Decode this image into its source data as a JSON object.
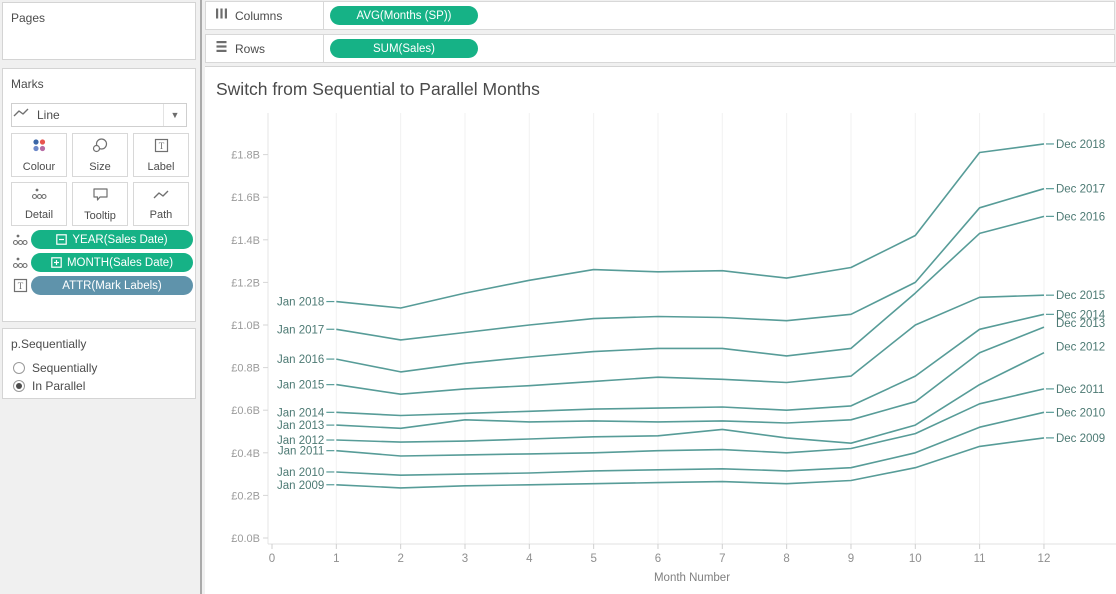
{
  "left_panel": {
    "pages": {
      "title": "Pages"
    },
    "marks": {
      "title": "Marks",
      "mark_type": "Line",
      "mark_type_icon": "line-mark-icon",
      "buttons": [
        {
          "label": "Colour",
          "icon": "colour-dots-icon"
        },
        {
          "label": "Size",
          "icon": "size-circles-icon"
        },
        {
          "label": "Label",
          "icon": "label-t-icon"
        },
        {
          "label": "Detail",
          "icon": "detail-dots-icon"
        },
        {
          "label": "Tooltip",
          "icon": "tooltip-bubble-icon"
        },
        {
          "label": "Path",
          "icon": "path-zigzag-icon"
        }
      ],
      "pills": [
        {
          "label": "YEAR(Sales Date)",
          "color": "green",
          "prefix_icon": "minus-box-icon",
          "row_icon": "detail-dots-icon"
        },
        {
          "label": "MONTH(Sales Date)",
          "color": "green",
          "prefix_icon": "plus-box-icon",
          "row_icon": "detail-dots-icon"
        },
        {
          "label": "ATTR(Mark Labels)",
          "color": "blue",
          "prefix_icon": null,
          "row_icon": "label-t-icon"
        }
      ]
    },
    "parameter": {
      "title": "p.Sequentially",
      "options": [
        {
          "label": "Sequentially",
          "selected": false
        },
        {
          "label": "In Parallel",
          "selected": true
        }
      ]
    }
  },
  "shelves": {
    "columns": {
      "label": "Columns",
      "icon": "columns-icon",
      "pill": "AVG(Months (SP))"
    },
    "rows": {
      "label": "Rows",
      "icon": "rows-icon",
      "pill": "SUM(Sales)"
    }
  },
  "chart_data": {
    "type": "line",
    "title": "Switch from Sequential to Parallel Months",
    "xlabel": "Month Number",
    "ylabel": "",
    "x_ticks": [
      0,
      1,
      2,
      3,
      4,
      5,
      6,
      7,
      8,
      9,
      10,
      11,
      12
    ],
    "y_ticks": [
      "£0.0B",
      "£0.2B",
      "£0.4B",
      "£0.6B",
      "£0.8B",
      "£1.0B",
      "£1.2B",
      "£1.4B",
      "£1.6B",
      "£1.8B"
    ],
    "y_tick_values": [
      0.0,
      0.2,
      0.4,
      0.6,
      0.8,
      1.0,
      1.2,
      1.4,
      1.6,
      1.8
    ],
    "xlim": [
      0,
      12
    ],
    "ylim": [
      0,
      1.9
    ],
    "grid": "faint-vertical",
    "legend_position": "none",
    "line_color": "#579c98",
    "mark_label_color": "#4d7a74",
    "x": [
      1,
      2,
      3,
      4,
      5,
      6,
      7,
      8,
      9,
      10,
      11,
      12
    ],
    "series": [
      {
        "name": "2018",
        "start_label": "Jan 2018",
        "end_label": "Dec 2018",
        "end_leader": true,
        "end_dy": 0,
        "values": [
          1.11,
          1.08,
          1.15,
          1.21,
          1.26,
          1.25,
          1.255,
          1.22,
          1.27,
          1.42,
          1.81,
          1.85
        ]
      },
      {
        "name": "2017",
        "start_label": "Jan 2017",
        "end_label": "Dec 2017",
        "end_leader": true,
        "end_dy": 0,
        "values": [
          0.98,
          0.93,
          0.965,
          1.0,
          1.03,
          1.04,
          1.035,
          1.02,
          1.05,
          1.2,
          1.55,
          1.64
        ]
      },
      {
        "name": "2016",
        "start_label": "Jan 2016",
        "end_label": "Dec 2016",
        "end_leader": true,
        "end_dy": 0,
        "values": [
          0.84,
          0.78,
          0.82,
          0.85,
          0.875,
          0.89,
          0.89,
          0.855,
          0.89,
          1.15,
          1.43,
          1.51
        ]
      },
      {
        "name": "2015",
        "start_label": "Jan 2015",
        "end_label": "Dec 2015",
        "end_leader": true,
        "end_dy": 0,
        "values": [
          0.72,
          0.675,
          0.7,
          0.715,
          0.735,
          0.755,
          0.745,
          0.73,
          0.76,
          1.0,
          1.13,
          1.14
        ]
      },
      {
        "name": "2014",
        "start_label": "Jan 2014",
        "end_label": "Dec 2014",
        "end_leader": true,
        "end_dy": 0,
        "values": [
          0.59,
          0.575,
          0.585,
          0.595,
          0.605,
          0.61,
          0.615,
          0.6,
          0.62,
          0.76,
          0.98,
          1.05
        ]
      },
      {
        "name": "2013",
        "start_label": "Jan 2013",
        "end_label": "Dec 2013",
        "end_leader": false,
        "end_dy": -4,
        "values": [
          0.53,
          0.515,
          0.555,
          0.545,
          0.55,
          0.545,
          0.55,
          0.54,
          0.555,
          0.64,
          0.87,
          0.99
        ]
      },
      {
        "name": "2012",
        "start_label": "Jan 2012",
        "end_label": "Dec 2012",
        "end_leader": false,
        "end_dy": -6,
        "values": [
          0.46,
          0.45,
          0.455,
          0.465,
          0.475,
          0.48,
          0.51,
          0.47,
          0.445,
          0.53,
          0.72,
          0.87
        ]
      },
      {
        "name": "2011",
        "start_label": "Jan 2011",
        "end_label": "Dec 2011",
        "end_leader": true,
        "end_dy": 0,
        "values": [
          0.41,
          0.385,
          0.39,
          0.395,
          0.4,
          0.41,
          0.415,
          0.4,
          0.42,
          0.49,
          0.63,
          0.7
        ]
      },
      {
        "name": "2010",
        "start_label": "Jan 2010",
        "end_label": "Dec 2010",
        "end_leader": true,
        "end_dy": 0,
        "values": [
          0.31,
          0.295,
          0.3,
          0.305,
          0.315,
          0.32,
          0.325,
          0.315,
          0.33,
          0.4,
          0.52,
          0.59
        ]
      },
      {
        "name": "2009",
        "start_label": "Jan 2009",
        "end_label": "Dec 2009",
        "end_leader": true,
        "end_dy": 0,
        "values": [
          0.25,
          0.235,
          0.245,
          0.25,
          0.255,
          0.26,
          0.265,
          0.255,
          0.27,
          0.33,
          0.43,
          0.47
        ]
      }
    ]
  }
}
